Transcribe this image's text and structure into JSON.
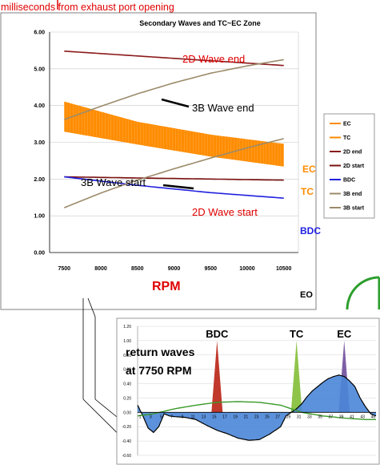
{
  "header_note": "milliseconds from exhaust port opening",
  "chart_data": [
    {
      "type": "line",
      "title": "Secondary Waves and TC~EC Zone",
      "x_tick_labels": [
        "7500",
        "8000",
        "8500",
        "9000",
        "9500",
        "10000",
        "10500"
      ],
      "y_tick_labels": [
        "0.00",
        "1.00",
        "2.00",
        "3.00",
        "4.00",
        "5.00",
        "6.00"
      ],
      "ylim": [
        0,
        6
      ],
      "xlim": [
        7300,
        10700
      ],
      "grid": "horizontal",
      "legend_position": "right",
      "band": {
        "name": "TC~EC zone",
        "color": "#ff8c00",
        "x": [
          7500,
          10500
        ],
        "upper": [
          4.1,
          2.95
        ],
        "lower": [
          3.3,
          2.35
        ]
      },
      "series": [
        {
          "name": "EC",
          "color": "#ff8c00",
          "x": [
            7500,
            8500,
            9500,
            10500
          ],
          "y": [
            4.1,
            3.55,
            3.2,
            2.95
          ]
        },
        {
          "name": "TC",
          "color": "#ff8c00",
          "x": [
            7500,
            8500,
            9500,
            10500
          ],
          "y": [
            3.3,
            2.95,
            2.62,
            2.35
          ]
        },
        {
          "name": "2D end",
          "color": "#8b1a1a",
          "x": [
            7500,
            8500,
            9500,
            10500
          ],
          "y": [
            5.48,
            5.35,
            5.22,
            5.09
          ]
        },
        {
          "name": "2D start",
          "color": "#7a1010",
          "x": [
            7500,
            10500
          ],
          "y": [
            2.06,
            1.97
          ]
        },
        {
          "name": "BDC",
          "color": "#2020e0",
          "x": [
            7500,
            8500,
            9500,
            10500
          ],
          "y": [
            2.06,
            1.83,
            1.63,
            1.48
          ]
        },
        {
          "name": "3B end",
          "color": "#9c8b6a",
          "x": [
            7500,
            8000,
            8500,
            9000,
            9500,
            10000,
            10500
          ],
          "y": [
            3.62,
            3.98,
            4.32,
            4.62,
            4.88,
            5.08,
            5.25
          ]
        },
        {
          "name": "3B start",
          "color": "#9c8b6a",
          "x": [
            7500,
            8000,
            8500,
            9000,
            9500,
            10000,
            10500
          ],
          "y": [
            1.22,
            1.62,
            1.97,
            2.28,
            2.57,
            2.85,
            3.1
          ]
        }
      ],
      "annotations": {
        "wave2_end": "2D Wave end",
        "wave3_end": "3B Wave end",
        "wave3_start": "3B Wave start",
        "wave2_start": "2D Wave start",
        "ec": "EC",
        "tc": "TC",
        "bdc": "BDC",
        "rpm": "RPM",
        "eo": "EO"
      }
    },
    {
      "type": "area",
      "x_tick_labels": [
        "1",
        "3",
        "5",
        "7",
        "9",
        "11",
        "13",
        "15",
        "17",
        "19",
        "21",
        "23",
        "25",
        "27",
        "29",
        "31",
        "33",
        "35",
        "37",
        "39",
        "41",
        "43",
        "45"
      ],
      "y_tick_labels": [
        "1.20",
        "1.00",
        "0.80",
        "0.60",
        "0.40",
        "0.20",
        "0.00",
        "-0.20",
        "-0.40",
        "-0.60"
      ],
      "ylim": [
        -0.6,
        1.2
      ],
      "xlim": [
        1,
        46
      ],
      "pressure_wave": {
        "color": "#4a86d8",
        "x": [
          1,
          2,
          3,
          4,
          5,
          6,
          7,
          8,
          10,
          12,
          14,
          16,
          18,
          20,
          22,
          24,
          26,
          28,
          29,
          30,
          31,
          32,
          33,
          34,
          35,
          36,
          37,
          38,
          39,
          40,
          41,
          42,
          43,
          44,
          45,
          46
        ],
        "y": [
          0.1,
          -0.05,
          -0.22,
          -0.28,
          -0.2,
          -0.02,
          -0.05,
          -0.06,
          -0.07,
          -0.1,
          -0.18,
          -0.25,
          -0.3,
          -0.36,
          -0.39,
          -0.38,
          -0.3,
          -0.2,
          -0.05,
          0.0,
          0.05,
          0.12,
          0.22,
          0.3,
          0.36,
          0.42,
          0.47,
          0.5,
          0.52,
          0.5,
          0.44,
          0.36,
          0.2,
          0.08,
          -0.02,
          -0.05
        ]
      },
      "secondary_curve": {
        "color": "#3a9a2a",
        "x": [
          1,
          4,
          8,
          12,
          16,
          20,
          24,
          28,
          30,
          32,
          36,
          40,
          44,
          46
        ],
        "y": [
          -0.05,
          -0.02,
          0.05,
          0.1,
          0.14,
          0.15,
          0.14,
          0.1,
          0.05,
          0.0,
          -0.05,
          -0.08,
          -0.1,
          -0.1
        ]
      },
      "markers": [
        {
          "name": "BDC",
          "label": "BDC",
          "color": "#c0392b",
          "x": 16,
          "peak": 1.0
        },
        {
          "name": "TC",
          "label": "TC",
          "color": "#8fc44a",
          "x": 31,
          "peak": 1.0
        },
        {
          "name": "EC",
          "label": "EC",
          "color": "#7d5fa6",
          "x": 40,
          "peak": 1.0
        }
      ],
      "caption": [
        "return waves",
        "at 7750 RPM"
      ]
    }
  ]
}
